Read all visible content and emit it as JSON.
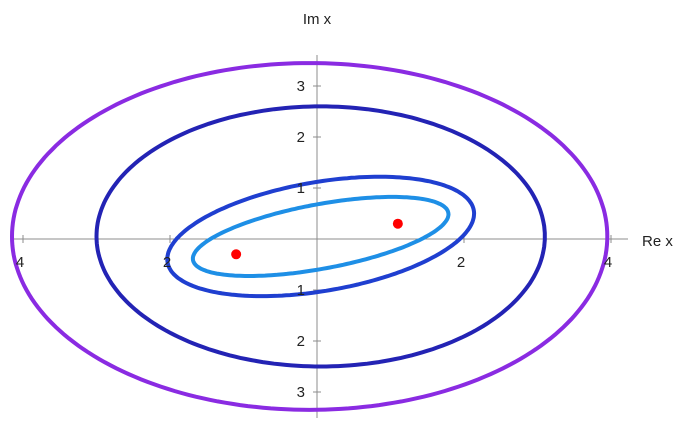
{
  "chart_data": {
    "type": "line",
    "title": "",
    "xlabel": "Re x",
    "ylabel": "Im x",
    "xlim": [
      -4.1,
      4.1
    ],
    "ylim": [
      -3.8,
      3.8
    ],
    "grid": false,
    "x_ticks": [
      {
        "value": -4,
        "label": "4"
      },
      {
        "value": -2,
        "label": "2"
      },
      {
        "value": 2,
        "label": "2"
      },
      {
        "value": 4,
        "label": "4"
      }
    ],
    "y_ticks": [
      {
        "value": 3,
        "label": "3"
      },
      {
        "value": 2,
        "label": "2"
      },
      {
        "value": 1,
        "label": "1"
      },
      {
        "value": -1,
        "label": "1"
      },
      {
        "value": -2,
        "label": "2"
      },
      {
        "value": -3,
        "label": "3"
      }
    ],
    "series": [
      {
        "kind": "ellipse",
        "color": "#8a2be2",
        "center": [
          -0.1,
          0.05
        ],
        "semi_x": 4.05,
        "semi_y": 3.4,
        "rotation_deg": 0
      },
      {
        "kind": "ellipse",
        "color": "#2323b4",
        "center": [
          0.05,
          0.05
        ],
        "semi_x": 3.05,
        "semi_y": 2.55,
        "rotation_deg": 0
      },
      {
        "kind": "ellipse",
        "color": "#1f3fd0",
        "center": [
          0.05,
          0.05
        ],
        "semi_x": 2.15,
        "semi_y": 1.05,
        "rotation_deg": 16
      },
      {
        "kind": "ellipse",
        "color": "#1e8fe6",
        "center": [
          0.05,
          0.05
        ],
        "semi_x": 1.8,
        "semi_y": 0.62,
        "rotation_deg": 16
      }
    ],
    "points": [
      {
        "x": -1.1,
        "y": -0.3,
        "color": "#ff0000"
      },
      {
        "x": 1.1,
        "y": 0.3,
        "color": "#ff0000"
      }
    ]
  }
}
